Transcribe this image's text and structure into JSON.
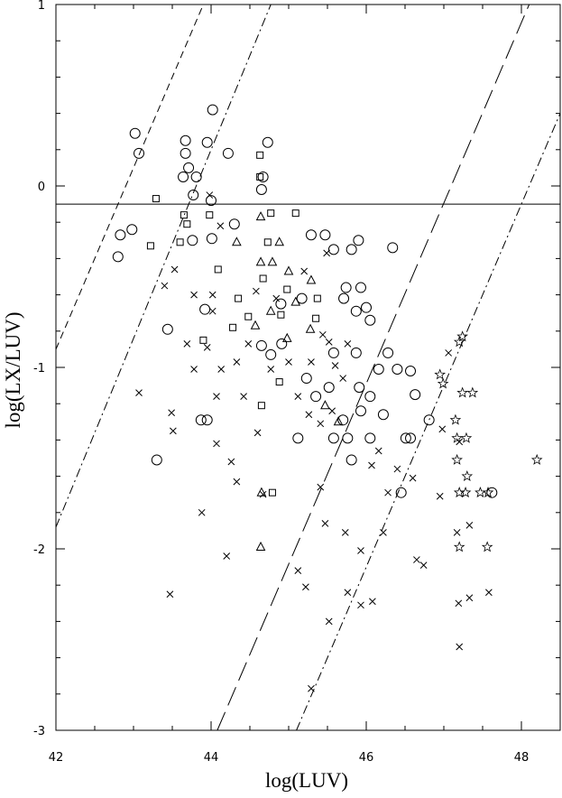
{
  "chart_data": {
    "type": "scatter",
    "x_label": "log(LUV)",
    "y_label": "log(LX/LUV)",
    "xlim": [
      42,
      48.5
    ],
    "ylim": [
      -3,
      1
    ],
    "xticks": [
      42,
      44,
      46,
      48
    ],
    "yticks": [
      1,
      0,
      -1,
      -2,
      -3
    ],
    "color": "#000000",
    "series": [
      {
        "marker": "circle",
        "x": [
          43.02,
          43.07,
          44.02,
          43.67,
          43.67,
          44.22,
          44.73,
          43.95,
          43.64,
          43.71,
          43.81,
          43.77,
          44.65,
          44.67,
          42.98,
          42.83,
          42.8,
          43.76,
          44.0,
          44.01,
          44.3,
          45.29,
          45.47,
          46.34,
          45.9,
          45.58,
          45.81,
          43.44,
          43.92,
          43.3,
          43.87,
          43.95,
          45.12,
          44.9,
          45.17,
          45.71,
          45.87,
          46.0,
          45.93,
          45.74,
          46.05,
          45.58,
          45.87,
          46.16,
          46.28,
          46.4,
          46.57,
          46.63,
          46.45,
          46.81,
          47.62,
          46.51,
          46.57,
          46.05,
          45.76,
          45.58,
          45.81,
          45.93,
          46.05,
          45.7,
          45.52,
          45.23,
          45.35,
          45.91,
          46.22,
          44.91,
          44.65,
          44.77
        ],
        "y": [
          0.29,
          0.18,
          0.42,
          0.25,
          0.18,
          0.18,
          0.24,
          0.24,
          0.05,
          0.1,
          0.05,
          -0.05,
          -0.02,
          0.05,
          -0.24,
          -0.27,
          -0.39,
          -0.3,
          -0.08,
          -0.29,
          -0.21,
          -0.27,
          -0.27,
          -0.34,
          -0.3,
          -0.35,
          -0.35,
          -0.79,
          -0.68,
          -1.51,
          -1.29,
          -1.29,
          -1.39,
          -0.65,
          -0.62,
          -0.62,
          -0.69,
          -0.67,
          -0.56,
          -0.56,
          -0.74,
          -0.92,
          -0.92,
          -1.01,
          -0.92,
          -1.01,
          -1.02,
          -1.15,
          -1.69,
          -1.29,
          -1.69,
          -1.39,
          -1.39,
          -1.39,
          -1.39,
          -1.39,
          -1.51,
          -1.24,
          -1.16,
          -1.29,
          -1.11,
          -1.06,
          -1.16,
          -1.11,
          -1.26,
          -0.87,
          -0.88,
          -0.93
        ]
      },
      {
        "marker": "square",
        "x": [
          43.29,
          44.63,
          44.63,
          43.22,
          43.6,
          43.69,
          43.65,
          43.98,
          44.77,
          45.09,
          44.73,
          44.09,
          44.35,
          44.48,
          44.28,
          43.9,
          44.67,
          44.98,
          44.9,
          45.37,
          45.35,
          44.88,
          44.65,
          44.79
        ],
        "y": [
          -0.07,
          0.17,
          0.05,
          -0.33,
          -0.31,
          -0.21,
          -0.16,
          -0.16,
          -0.15,
          -0.15,
          -0.31,
          -0.46,
          -0.62,
          -0.72,
          -0.78,
          -0.85,
          -0.51,
          -0.57,
          -0.71,
          -0.62,
          -0.73,
          -1.08,
          -1.21,
          -1.69
        ]
      },
      {
        "marker": "triangle",
        "x": [
          44.64,
          44.33,
          44.88,
          44.64,
          44.79,
          45.0,
          45.29,
          45.09,
          44.77,
          44.57,
          44.98,
          45.28,
          44.65,
          44.64,
          45.47,
          45.64
        ],
        "y": [
          -0.17,
          -0.31,
          -0.31,
          -0.42,
          -0.42,
          -0.47,
          -0.52,
          -0.64,
          -0.69,
          -0.77,
          -0.84,
          -0.79,
          -1.69,
          -1.99,
          -1.21,
          -1.3
        ]
      },
      {
        "marker": "cross",
        "x": [
          43.98,
          44.12,
          43.53,
          43.4,
          43.78,
          44.02,
          44.02,
          43.69,
          43.95,
          43.07,
          43.49,
          43.51,
          43.47,
          43.88,
          44.07,
          44.26,
          44.33,
          44.2,
          44.67,
          44.42,
          44.13,
          44.6,
          44.33,
          44.77,
          44.48,
          45.0,
          45.12,
          45.12,
          45.22,
          45.29,
          45.52,
          45.41,
          45.47,
          45.73,
          45.76,
          45.93,
          46.08,
          45.93,
          46.22,
          46.28,
          46.4,
          46.6,
          46.65,
          46.74,
          46.98,
          46.95,
          47.17,
          47.19,
          47.2,
          47.33,
          47.58,
          47.33,
          47.2,
          47.06,
          45.7,
          45.29,
          45.44,
          45.6,
          45.56,
          45.41,
          45.26,
          45.76,
          45.49,
          45.2,
          44.84,
          44.58,
          43.78,
          44.07,
          45.52,
          46.16,
          46.07
        ],
        "y": [
          -0.05,
          -0.22,
          -0.46,
          -0.55,
          -0.6,
          -0.6,
          -0.69,
          -0.87,
          -0.89,
          -1.14,
          -1.25,
          -1.35,
          -2.25,
          -1.8,
          -1.42,
          -1.52,
          -1.63,
          -2.04,
          -1.7,
          -1.16,
          -1.01,
          -1.36,
          -0.97,
          -1.01,
          -0.87,
          -0.97,
          -1.16,
          -2.12,
          -2.21,
          -2.77,
          -2.4,
          -1.66,
          -1.86,
          -1.91,
          -2.24,
          -2.31,
          -2.29,
          -2.01,
          -1.91,
          -1.69,
          -1.56,
          -1.61,
          -2.06,
          -2.09,
          -1.34,
          -1.71,
          -1.91,
          -2.3,
          -2.54,
          -2.27,
          -2.24,
          -1.87,
          -1.41,
          -0.92,
          -1.06,
          -0.97,
          -0.82,
          -0.99,
          -1.24,
          -1.31,
          -1.26,
          -0.87,
          -0.37,
          -0.47,
          -0.62,
          -0.58,
          -1.01,
          -1.16,
          -0.86,
          -1.46,
          -1.54
        ]
      },
      {
        "marker": "star",
        "x": [
          46.95,
          46.99,
          47.2,
          47.24,
          47.24,
          47.37,
          47.15,
          47.17,
          47.29,
          47.17,
          47.2,
          47.28,
          47.47,
          47.57,
          47.2,
          47.56,
          48.2,
          47.3
        ],
        "y": [
          -1.04,
          -1.09,
          -0.86,
          -0.83,
          -1.14,
          -1.14,
          -1.29,
          -1.39,
          -1.39,
          -1.51,
          -1.69,
          -1.69,
          -1.69,
          -1.69,
          -1.99,
          -1.99,
          -1.51,
          -1.6
        ]
      }
    ],
    "lines": [
      {
        "style": "solid",
        "x": [
          42,
          48.5
        ],
        "y": [
          -0.1,
          -0.1
        ]
      },
      {
        "style": "short-dash",
        "x": [
          42,
          43.9
        ],
        "y": [
          -0.9,
          1
        ]
      },
      {
        "style": "dash-dot",
        "x": [
          42,
          44.77
        ],
        "y": [
          -1.88,
          1
        ]
      },
      {
        "style": "long-dash",
        "x": [
          44.08,
          48.1
        ],
        "y": [
          -3,
          1
        ]
      },
      {
        "style": "dash-dot",
        "x": [
          45.1,
          48.5
        ],
        "y": [
          -3,
          0.4
        ]
      }
    ]
  }
}
